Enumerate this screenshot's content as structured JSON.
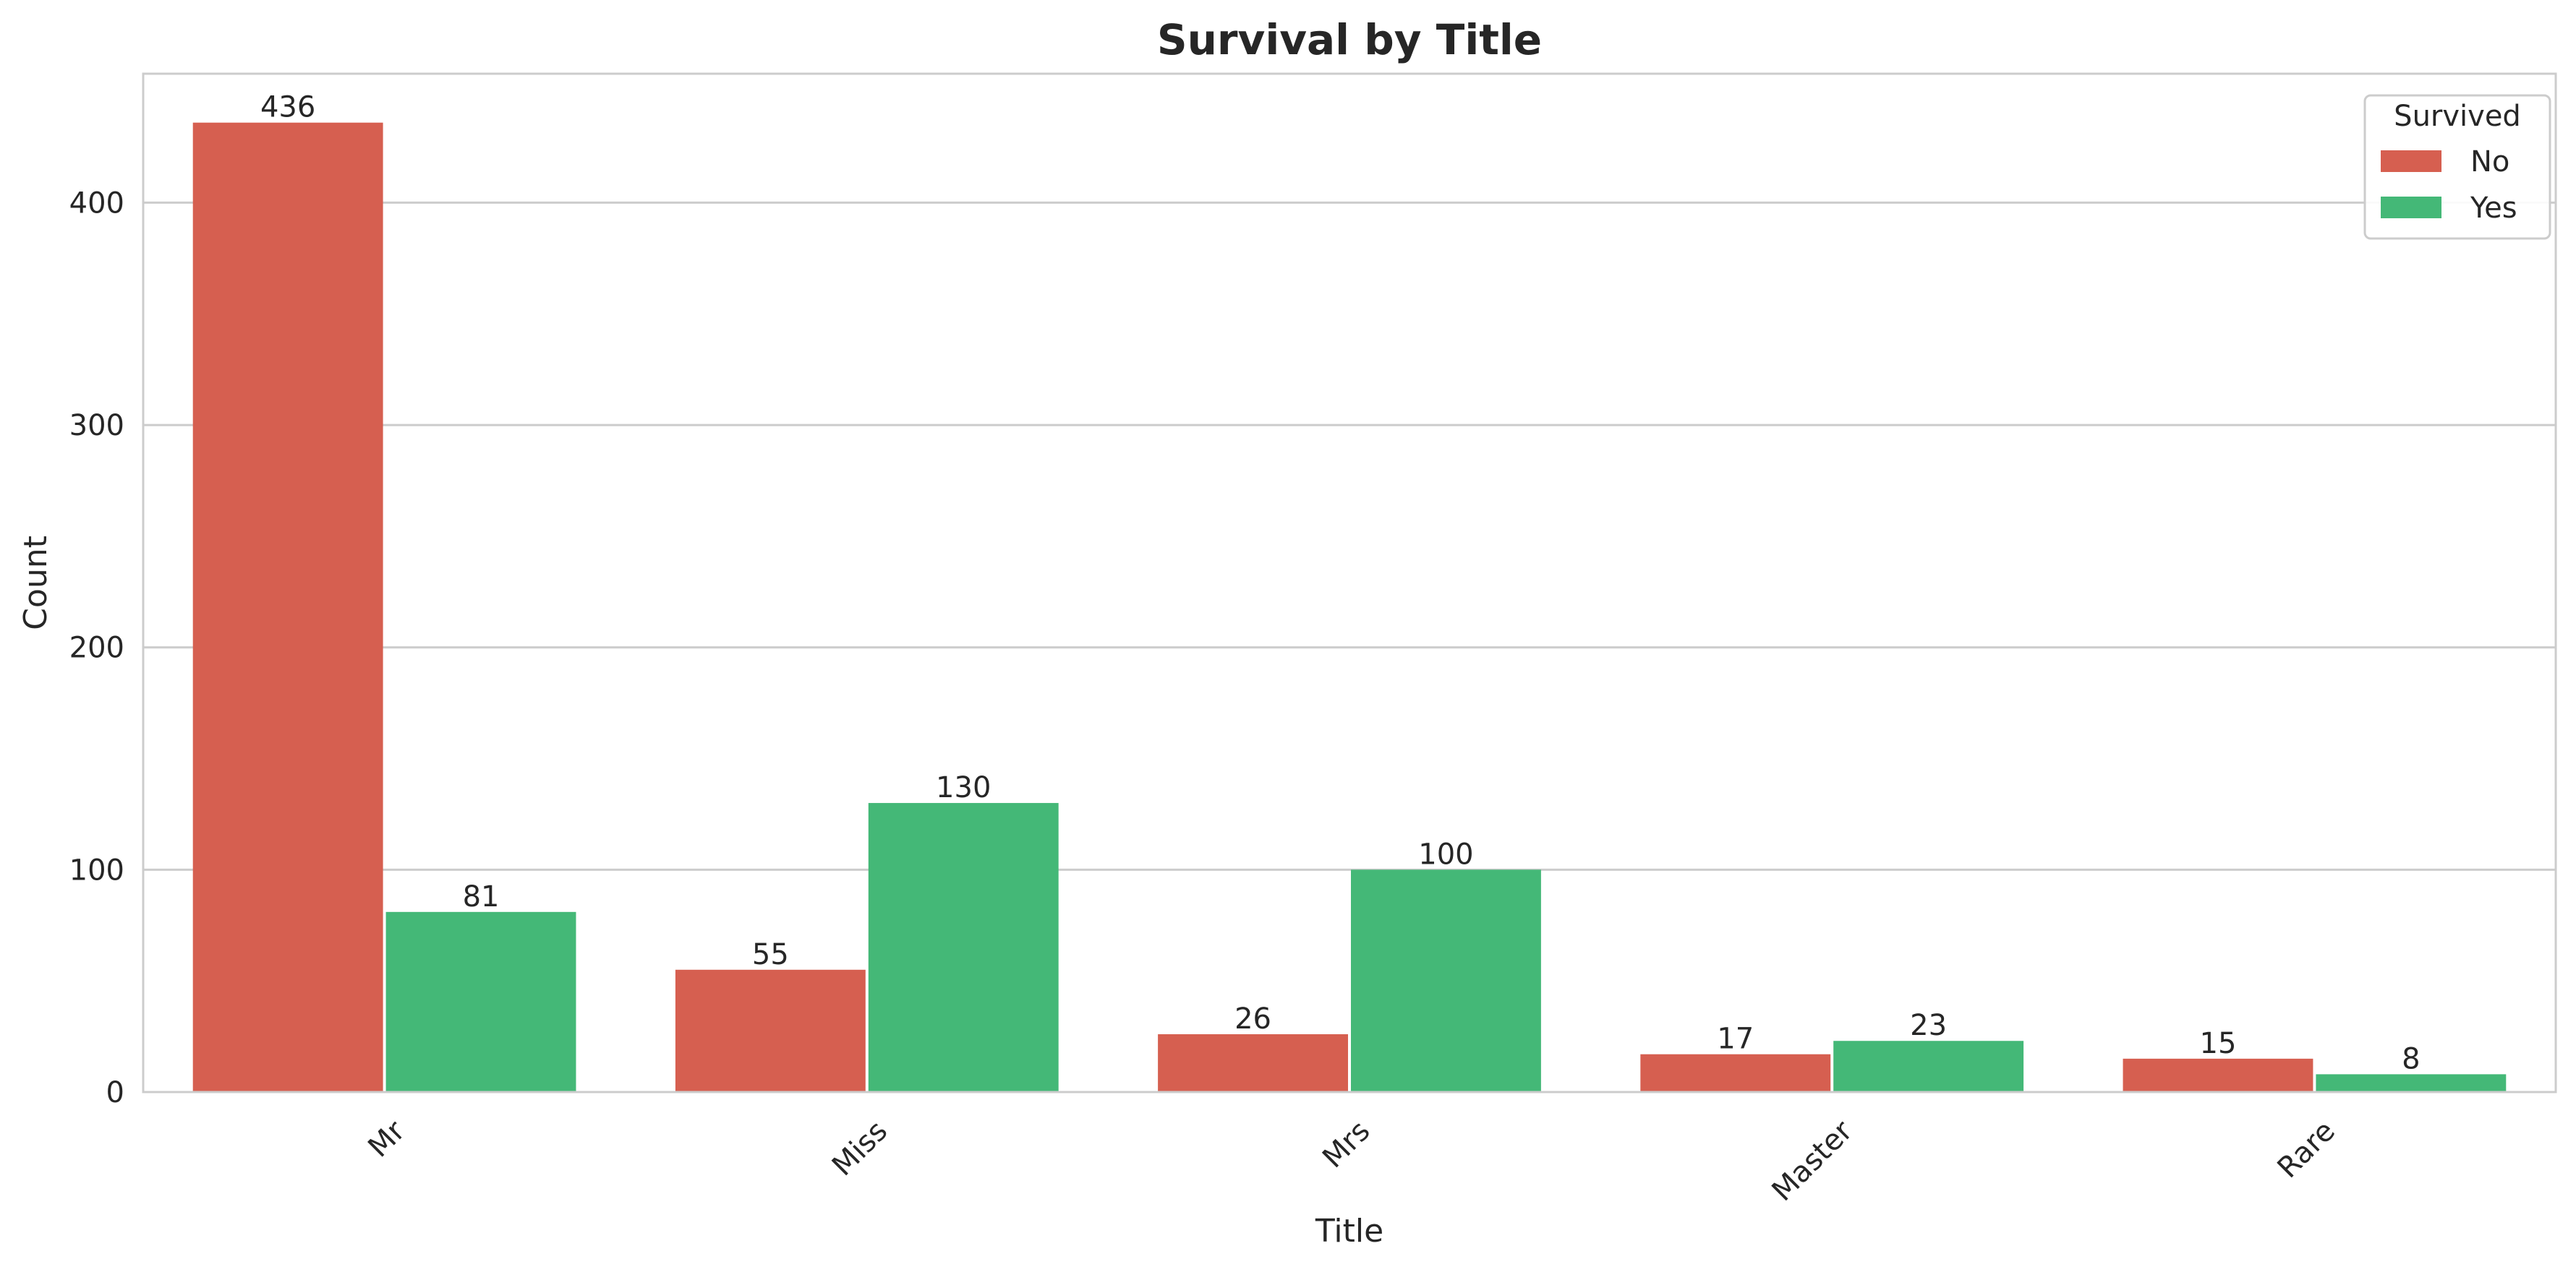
{
  "chart_data": {
    "type": "bar",
    "title": "Survival by Title",
    "xlabel": "Title",
    "ylabel": "Count",
    "categories": [
      "Mr",
      "Miss",
      "Mrs",
      "Master",
      "Rare"
    ],
    "series": [
      {
        "name": "No",
        "color": "#d65f50",
        "values": [
          436,
          55,
          26,
          17,
          15
        ]
      },
      {
        "name": "Yes",
        "color": "#44b877",
        "values": [
          81,
          130,
          100,
          23,
          8
        ]
      }
    ],
    "ylim": [
      0,
      458
    ],
    "yticks": [
      0,
      100,
      200,
      300,
      400
    ],
    "grid": true,
    "legend": {
      "title": "Survived",
      "placement": "top-right"
    },
    "data_labels": true,
    "xtick_rotation": 45
  }
}
